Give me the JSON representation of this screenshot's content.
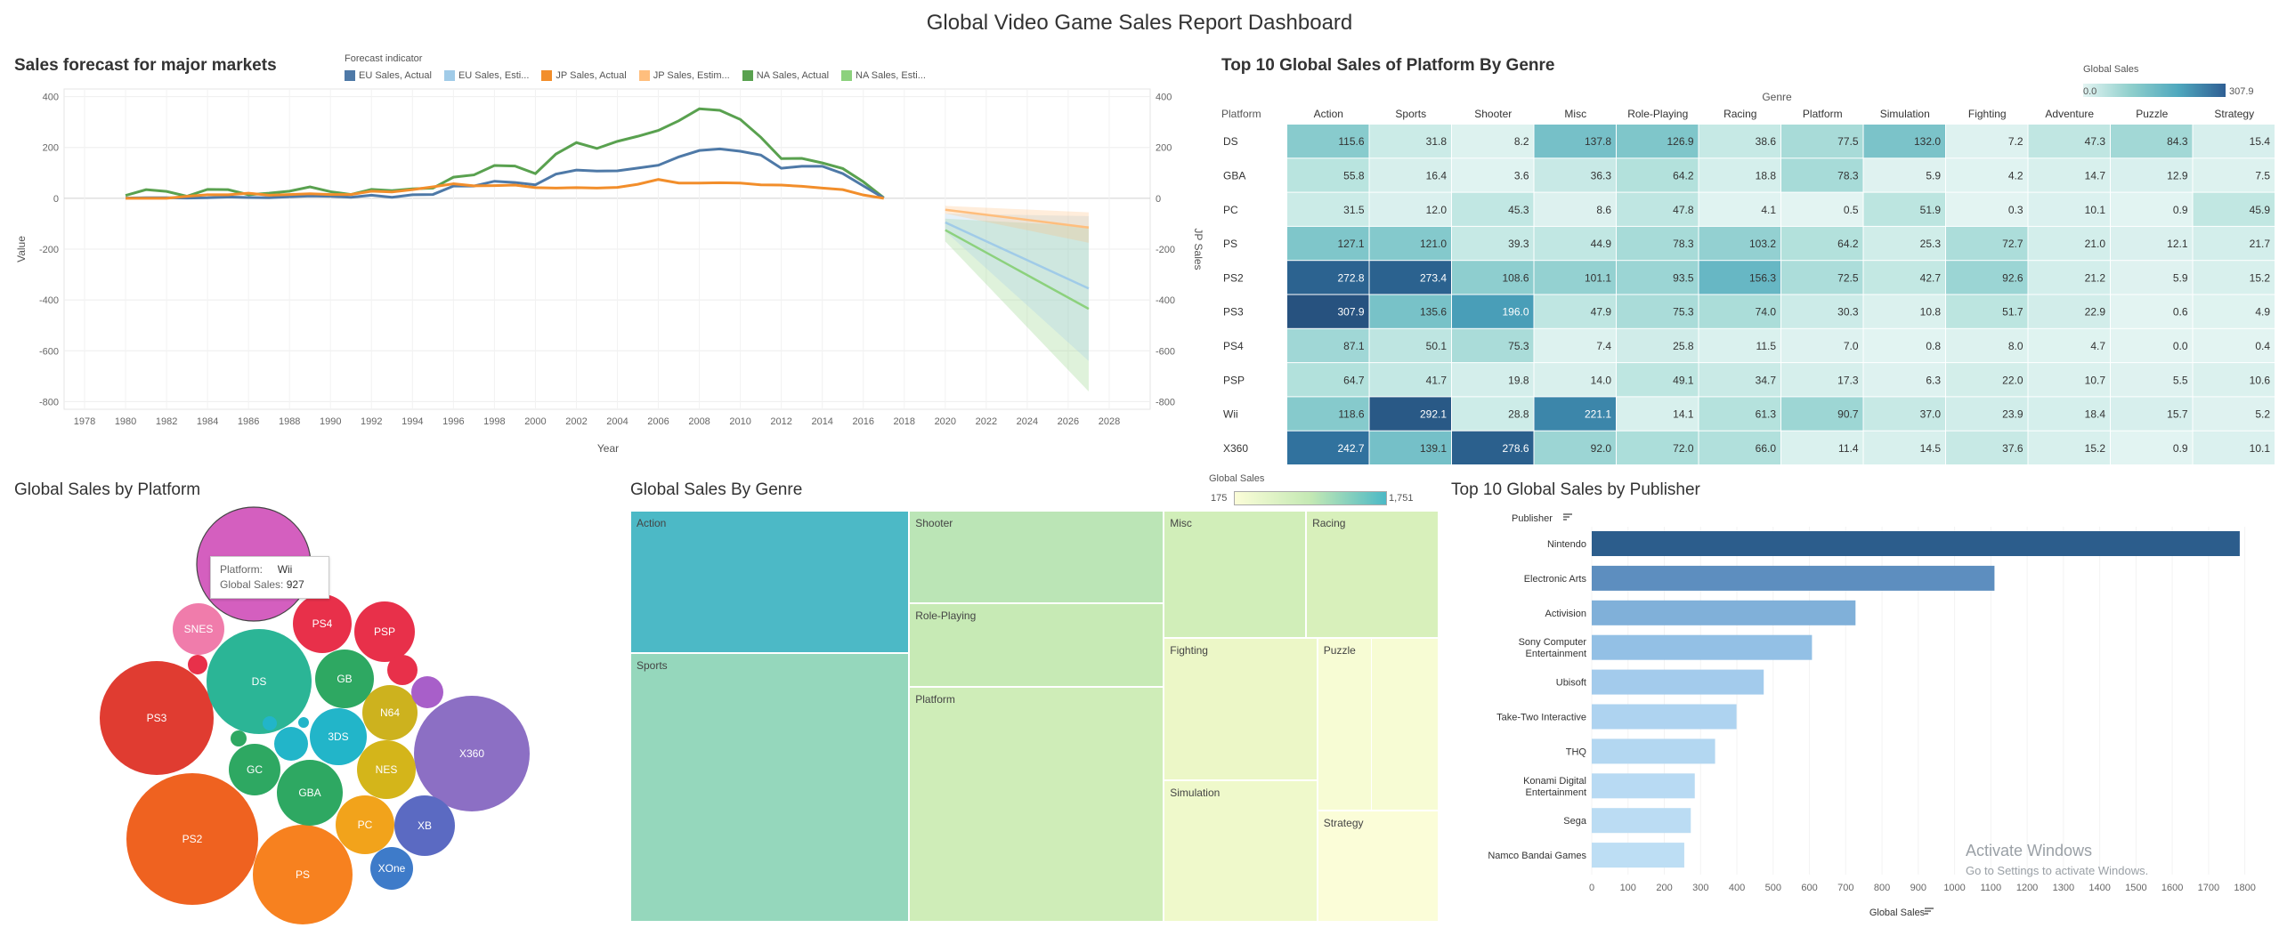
{
  "dashboard_title": "Global Video Game Sales Report Dashboard",
  "forecast": {
    "title": "Sales forecast for major markets",
    "legend_title": "Forecast indicator",
    "legend": [
      {
        "label": "EU Sales, Actual",
        "color": "#4e79a7"
      },
      {
        "label": "EU Sales, Esti...",
        "color": "#a0cbe8"
      },
      {
        "label": "JP Sales, Actual",
        "color": "#f28e2b"
      },
      {
        "label": "JP Sales, Estim...",
        "color": "#ffbe7d"
      },
      {
        "label": "NA Sales, Actual",
        "color": "#59a14f"
      },
      {
        "label": "NA Sales, Esti...",
        "color": "#8cd17d"
      }
    ],
    "y_label": "Value",
    "y2_label": "JP Sales",
    "x_label": "Year"
  },
  "heatmap": {
    "title": "Top 10 Global Sales of Platform By Genre",
    "col_group_label": "Genre",
    "row_header_label": "Platform",
    "legend_title": "Global Sales",
    "legend_min": "0.0",
    "legend_max": "307.9"
  },
  "bubble": {
    "title": "Global Sales by Platform",
    "tooltip_platform_label": "Platform:",
    "tooltip_platform_value": "Wii",
    "tooltip_sales_label": "Global Sales:",
    "tooltip_sales_value": "927"
  },
  "treemap": {
    "title": "Global Sales By Genre",
    "legend_title": "Global Sales",
    "legend_min": "175",
    "legend_max": "1,751"
  },
  "publisher": {
    "title": "Top 10 Global Sales by Publisher",
    "y_header": "Publisher",
    "x_label": "Global Sales"
  },
  "watermark": {
    "line1": "Activate Windows",
    "line2": "Go to Settings to activate Windows."
  },
  "chart_data": [
    {
      "type": "line",
      "title": "Sales forecast for major markets",
      "xlabel": "Year",
      "ylabel": "Value",
      "y2label": "JP Sales",
      "xlim": [
        1977,
        2030
      ],
      "x_ticks": [
        1978,
        1980,
        1982,
        1984,
        1986,
        1988,
        1990,
        1992,
        1994,
        1996,
        1998,
        2000,
        2002,
        2004,
        2006,
        2008,
        2010,
        2012,
        2014,
        2016,
        2018,
        2020,
        2022,
        2024,
        2026,
        2028
      ],
      "ylim": [
        -830,
        430
      ],
      "y_ticks": [
        400,
        200,
        0,
        -200,
        -400,
        -600,
        -800
      ],
      "grid": true,
      "series": [
        {
          "name": "NA Sales, Actual",
          "color": "#59a14f",
          "x": [
            1980,
            1981,
            1982,
            1983,
            1984,
            1985,
            1986,
            1987,
            1988,
            1989,
            1990,
            1991,
            1992,
            1993,
            1994,
            1995,
            1996,
            1997,
            1998,
            1999,
            2000,
            2001,
            2002,
            2003,
            2004,
            2005,
            2006,
            2007,
            2008,
            2009,
            2010,
            2011,
            2012,
            2013,
            2014,
            2015,
            2016,
            2017
          ],
          "y": [
            11,
            34,
            27,
            8,
            35,
            34,
            14,
            20,
            28,
            45,
            26,
            15,
            35,
            30,
            37,
            40,
            83,
            92,
            129,
            127,
            97,
            174,
            219,
            196,
            224,
            244,
            267,
            305,
            352,
            346,
            310,
            240,
            156,
            157,
            139,
            117,
            65,
            2
          ]
        },
        {
          "name": "EU Sales, Actual",
          "color": "#4e79a7",
          "x": [
            1980,
            1981,
            1982,
            1983,
            1984,
            1985,
            1986,
            1987,
            1988,
            1989,
            1990,
            1991,
            1992,
            1993,
            1994,
            1995,
            1996,
            1997,
            1998,
            1999,
            2000,
            2001,
            2002,
            2003,
            2004,
            2005,
            2006,
            2007,
            2008,
            2009,
            2010,
            2011,
            2012,
            2013,
            2014,
            2015,
            2016,
            2017
          ],
          "y": [
            1,
            2,
            2,
            1,
            2,
            5,
            3,
            2,
            6,
            9,
            8,
            4,
            12,
            4,
            14,
            15,
            48,
            48,
            67,
            62,
            53,
            95,
            111,
            107,
            108,
            119,
            130,
            163,
            188,
            194,
            185,
            170,
            118,
            126,
            126,
            97,
            49,
            1
          ]
        },
        {
          "name": "JP Sales, Actual",
          "color": "#f28e2b",
          "x": [
            1980,
            1981,
            1982,
            1983,
            1984,
            1985,
            1986,
            1987,
            1988,
            1989,
            1990,
            1991,
            1992,
            1993,
            1994,
            1995,
            1996,
            1997,
            1998,
            1999,
            2000,
            2001,
            2002,
            2003,
            2004,
            2005,
            2006,
            2007,
            2008,
            2009,
            2010,
            2011,
            2012,
            2013,
            2014,
            2015,
            2016,
            2017
          ],
          "y": [
            0,
            0,
            0,
            8,
            14,
            14,
            20,
            12,
            15,
            18,
            15,
            15,
            28,
            25,
            34,
            45,
            57,
            49,
            50,
            52,
            42,
            40,
            42,
            40,
            43,
            55,
            74,
            60,
            60,
            61,
            60,
            53,
            52,
            47,
            40,
            34,
            13,
            0
          ]
        },
        {
          "name": "NA Sales, Esti...",
          "color": "#8cd17d",
          "x": [
            2020,
            2027
          ],
          "y": [
            -125,
            -435
          ],
          "band_low": [
            -170,
            -760
          ],
          "band_high": [
            -80,
            -110
          ]
        },
        {
          "name": "EU Sales, Esti...",
          "color": "#a0cbe8",
          "x": [
            2020,
            2027
          ],
          "y": [
            -95,
            -355
          ],
          "band_low": [
            -130,
            -640
          ],
          "band_high": [
            -60,
            -70
          ]
        },
        {
          "name": "JP Sales, Estim...",
          "color": "#ffbe7d",
          "x": [
            2020,
            2027
          ],
          "y": [
            -45,
            -115
          ],
          "band_low": [
            -60,
            -175
          ],
          "band_high": [
            -30,
            -55
          ]
        }
      ]
    },
    {
      "type": "heatmap",
      "title": "Top 10 Global Sales of Platform By Genre",
      "xlabel": "Genre",
      "ylabel": "Platform",
      "columns": [
        "Action",
        "Sports",
        "Shooter",
        "Misc",
        "Role-Playing",
        "Racing",
        "Platform",
        "Simulation",
        "Fighting",
        "Adventure",
        "Puzzle",
        "Strategy"
      ],
      "rows": [
        "DS",
        "GBA",
        "PC",
        "PS",
        "PS2",
        "PS3",
        "PS4",
        "PSP",
        "Wii",
        "X360"
      ],
      "values": [
        [
          115.6,
          31.8,
          8.2,
          137.8,
          126.9,
          38.6,
          77.5,
          132.0,
          7.2,
          47.3,
          84.3,
          15.4
        ],
        [
          55.8,
          16.4,
          3.6,
          36.3,
          64.2,
          18.8,
          78.3,
          5.9,
          4.2,
          14.7,
          12.9,
          7.5
        ],
        [
          31.5,
          12.0,
          45.3,
          8.6,
          47.8,
          4.1,
          0.5,
          51.9,
          0.3,
          10.1,
          0.9,
          45.9
        ],
        [
          127.1,
          121.0,
          39.3,
          44.9,
          78.3,
          103.2,
          64.2,
          25.3,
          72.7,
          21.0,
          12.1,
          21.7
        ],
        [
          272.8,
          273.4,
          108.6,
          101.1,
          93.5,
          156.3,
          72.5,
          42.7,
          92.6,
          21.2,
          5.9,
          15.2
        ],
        [
          307.9,
          135.6,
          196.0,
          47.9,
          75.3,
          74.0,
          30.3,
          10.8,
          51.7,
          22.9,
          0.6,
          4.9
        ],
        [
          87.1,
          50.1,
          75.3,
          7.4,
          25.8,
          11.5,
          7.0,
          0.8,
          8.0,
          4.7,
          0.0,
          0.4
        ],
        [
          64.7,
          41.7,
          19.8,
          14.0,
          49.1,
          34.7,
          17.3,
          6.3,
          22.0,
          10.7,
          5.5,
          10.6
        ],
        [
          118.6,
          292.1,
          28.8,
          221.1,
          14.1,
          61.3,
          90.7,
          37.0,
          23.9,
          18.4,
          15.7,
          5.2
        ],
        [
          242.7,
          139.1,
          278.6,
          92.0,
          72.0,
          66.0,
          11.4,
          14.5,
          37.6,
          15.2,
          0.9,
          10.1
        ]
      ],
      "color_range": [
        0.0,
        307.9
      ]
    },
    {
      "type": "scatter",
      "title": "Global Sales by Platform",
      "points": [
        {
          "label": "Wii",
          "value": 927,
          "color": "#d45fbf"
        },
        {
          "label": "PS2",
          "value": 1255,
          "color": "#ef6220"
        },
        {
          "label": "X360",
          "value": 979,
          "color": "#8c6fc4"
        },
        {
          "label": "PS3",
          "value": 957,
          "color": "#e03c31"
        },
        {
          "label": "DS",
          "value": 822,
          "color": "#2bb596"
        },
        {
          "label": "PS",
          "value": 730,
          "color": "#f7811f"
        },
        {
          "label": "GBA",
          "value": 318,
          "color": "#2ea862"
        },
        {
          "label": "PSP",
          "value": 296,
          "color": "#e8304a"
        },
        {
          "label": "PS4",
          "value": 278,
          "color": "#e8304a"
        },
        {
          "label": "PC",
          "value": 259,
          "color": "#f2a31b"
        },
        {
          "label": "GB",
          "value": 255,
          "color": "#2ea862"
        },
        {
          "label": "XB",
          "value": 258,
          "color": "#5b6ac2"
        },
        {
          "label": "NES",
          "value": 252,
          "color": "#d4b51a"
        },
        {
          "label": "3DS",
          "value": 248,
          "color": "#22b5c9"
        },
        {
          "label": "N64",
          "value": 218,
          "color": "#cdb21e"
        },
        {
          "label": "SNES",
          "value": 200,
          "color": "#f07cab"
        },
        {
          "label": "GC",
          "value": 199,
          "color": "#2ea862"
        },
        {
          "label": "XOne",
          "value": 141,
          "color": "#3e7bc9"
        }
      ]
    },
    {
      "type": "table",
      "title": "Global Sales By Genre",
      "categories": [
        "Action",
        "Sports",
        "Shooter",
        "Role-Playing",
        "Platform",
        "Misc",
        "Racing",
        "Fighting",
        "Simulation",
        "Puzzle",
        "Strategy"
      ],
      "values": [
        1751,
        1330,
        1037,
        927,
        831,
        810,
        732,
        449,
        392,
        245,
        175
      ],
      "color_range": [
        175,
        1751
      ]
    },
    {
      "type": "bar",
      "title": "Top 10 Global Sales by Publisher",
      "categories": [
        "Nintendo",
        "Electronic Arts",
        "Activision",
        "Sony Computer Entertainment",
        "Ubisoft",
        "Take-Two Interactive",
        "THQ",
        "Konami Digital Entertainment",
        "Sega",
        "Namco Bandai Games"
      ],
      "category_lines": [
        [
          "Nintendo"
        ],
        [
          "Electronic Arts"
        ],
        [
          "Activision"
        ],
        [
          "Sony Computer",
          "Entertainment"
        ],
        [
          "Ubisoft"
        ],
        [
          "Take-Two Interactive"
        ],
        [
          "THQ"
        ],
        [
          "Konami Digital",
          "Entertainment"
        ],
        [
          "Sega"
        ],
        [
          "Namco Bandai Games"
        ]
      ],
      "values": [
        1786,
        1110,
        727,
        607,
        474,
        399,
        340,
        284,
        273,
        255
      ],
      "xlabel": "Global Sales",
      "ylabel": "Publisher",
      "xlim": [
        0,
        1850
      ],
      "x_ticks": [
        0,
        100,
        200,
        300,
        400,
        500,
        600,
        700,
        800,
        900,
        1000,
        1100,
        1200,
        1300,
        1400,
        1500,
        1600,
        1700,
        1800
      ],
      "colors": [
        "#2c5d8c",
        "#5d8ebf",
        "#80b0d9",
        "#93c0e5",
        "#a3cbec",
        "#aed3f0",
        "#b3d7f1",
        "#b8daf3",
        "#bbdcf3",
        "#bddef4"
      ]
    }
  ]
}
